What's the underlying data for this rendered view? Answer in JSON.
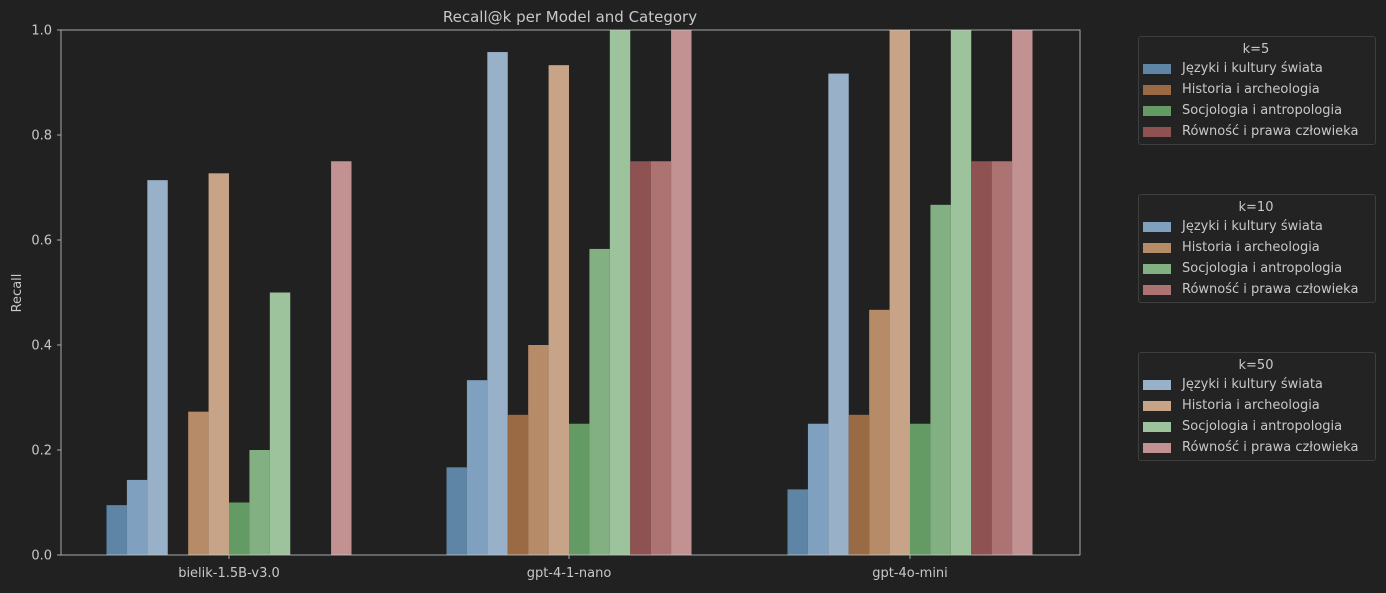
{
  "chart_data": {
    "type": "bar",
    "title": "Recall@k per Model and Category",
    "xlabel": "",
    "ylabel": "Recall",
    "ylim": [
      0,
      1.0
    ],
    "yticks": [
      "0.0",
      "0.2",
      "0.4",
      "0.6",
      "0.8",
      "1.0"
    ],
    "categories": [
      "bielik-1.5B-v3.0",
      "gpt-4-1-nano",
      "gpt-4o-mini"
    ],
    "grid": false,
    "legend_placement": "outside right",
    "series": [
      {
        "name": "Języki i kultury świata",
        "k": "k=5",
        "color": "#5e84a6",
        "values": [
          0.095,
          0.167,
          0.125
        ]
      },
      {
        "name": "Języki i kultury świata",
        "k": "k=10",
        "color": "#7fa0be",
        "values": [
          0.143,
          0.333,
          0.25
        ]
      },
      {
        "name": "Języki i kultury świata",
        "k": "k=50",
        "color": "#98b1c9",
        "values": [
          0.714,
          0.958,
          0.917
        ]
      },
      {
        "name": "Historia i archeologia",
        "k": "k=5",
        "color": "#996a44",
        "values": [
          0.0,
          0.267,
          0.267
        ]
      },
      {
        "name": "Historia i archeologia",
        "k": "k=10",
        "color": "#b58b68",
        "values": [
          0.273,
          0.4,
          0.467
        ]
      },
      {
        "name": "Historia i archeologia",
        "k": "k=50",
        "color": "#c7a487",
        "values": [
          0.727,
          0.933,
          1.0
        ]
      },
      {
        "name": "Socjologia i antropologia",
        "k": "k=5",
        "color": "#649b65",
        "values": [
          0.1,
          0.25,
          0.25
        ]
      },
      {
        "name": "Socjologia i antropologia",
        "k": "k=10",
        "color": "#83b083",
        "values": [
          0.2,
          0.583,
          0.667
        ]
      },
      {
        "name": "Socjologia i antropologia",
        "k": "k=50",
        "color": "#9dc39c",
        "values": [
          0.5,
          1.0,
          1.0
        ]
      },
      {
        "name": "Równość i prawa człowieka",
        "k": "k=5",
        "color": "#8e5252",
        "values": [
          0.0,
          0.75,
          0.75
        ]
      },
      {
        "name": "Równość i prawa człowieka",
        "k": "k=10",
        "color": "#ad7272",
        "values": [
          0.0,
          0.75,
          0.75
        ]
      },
      {
        "name": "Równość i prawa człowieka",
        "k": "k=50",
        "color": "#c29192",
        "values": [
          0.75,
          1.0,
          1.0
        ]
      }
    ]
  },
  "legends": [
    {
      "title": "k=5",
      "items": [
        {
          "label": "Języki i kultury świata",
          "color": "#5e84a6"
        },
        {
          "label": "Historia i archeologia",
          "color": "#996a44"
        },
        {
          "label": "Socjologia i antropologia",
          "color": "#649b65"
        },
        {
          "label": "Równość i prawa człowieka",
          "color": "#8e5252"
        }
      ]
    },
    {
      "title": "k=10",
      "items": [
        {
          "label": "Języki i kultury świata",
          "color": "#7fa0be"
        },
        {
          "label": "Historia i archeologia",
          "color": "#b58b68"
        },
        {
          "label": "Socjologia i antropologia",
          "color": "#83b083"
        },
        {
          "label": "Równość i prawa człowieka",
          "color": "#ad7272"
        }
      ]
    },
    {
      "title": "k=50",
      "items": [
        {
          "label": "Języki i kultury świata",
          "color": "#98b1c9"
        },
        {
          "label": "Historia i archeologia",
          "color": "#c7a487"
        },
        {
          "label": "Socjologia i antropologia",
          "color": "#9dc39c"
        },
        {
          "label": "Równość i prawa człowieka",
          "color": "#c29192"
        }
      ]
    }
  ],
  "colors": {
    "background": "#212121",
    "axis": "#c8c8c8",
    "text": "#c8c8c8"
  }
}
